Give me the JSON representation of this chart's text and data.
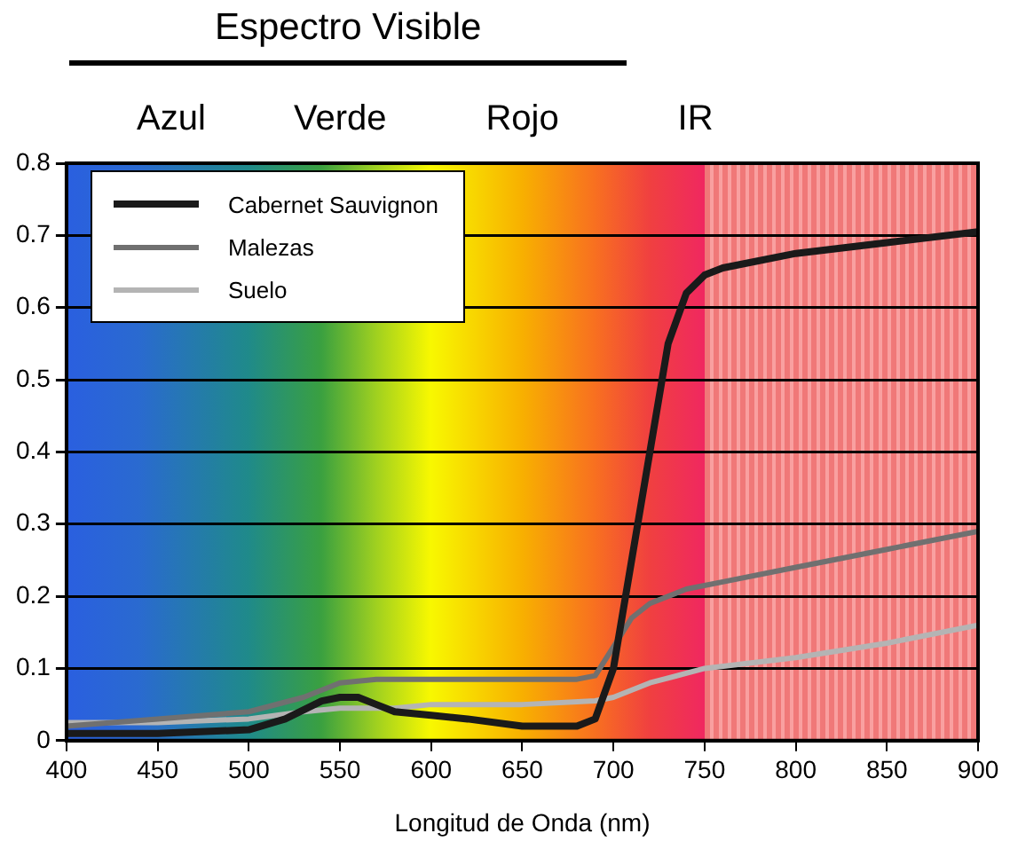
{
  "chart_data": {
    "type": "line",
    "title": "Espectro Visible",
    "annotations": [
      "Azul",
      "Verde",
      "Rojo",
      "IR"
    ],
    "xlabel": "Longitud de Onda (nm)",
    "xlim": [
      400,
      900
    ],
    "xticks": [
      400,
      450,
      500,
      550,
      600,
      650,
      700,
      750,
      800,
      850,
      900
    ],
    "ylim": [
      0,
      0.8
    ],
    "yticks": [
      0,
      0.1,
      0.2,
      0.3,
      0.4,
      0.5,
      0.6,
      0.7,
      0.8
    ],
    "grid": "y",
    "legend": "top left",
    "marker": "none",
    "series": [
      {
        "name": "Cabernet Sauvignon",
        "color": "#1a1a1a",
        "x": [
          400,
          450,
          500,
          520,
          540,
          550,
          560,
          570,
          580,
          600,
          620,
          650,
          680,
          690,
          700,
          710,
          720,
          730,
          740,
          750,
          760,
          800,
          850,
          900
        ],
        "values": [
          0.01,
          0.01,
          0.015,
          0.03,
          0.055,
          0.06,
          0.06,
          0.05,
          0.04,
          0.035,
          0.03,
          0.02,
          0.02,
          0.03,
          0.1,
          0.25,
          0.4,
          0.55,
          0.62,
          0.645,
          0.655,
          0.675,
          0.69,
          0.705
        ]
      },
      {
        "name": "Malezas",
        "color": "#707070",
        "x": [
          400,
          450,
          500,
          530,
          550,
          570,
          600,
          650,
          680,
          690,
          700,
          710,
          720,
          740,
          760,
          800,
          850,
          900
        ],
        "values": [
          0.02,
          0.03,
          0.04,
          0.06,
          0.08,
          0.085,
          0.085,
          0.085,
          0.085,
          0.09,
          0.13,
          0.17,
          0.19,
          0.21,
          0.22,
          0.24,
          0.265,
          0.29
        ]
      },
      {
        "name": "Suelo",
        "color": "#b4b4b4",
        "x": [
          400,
          450,
          500,
          530,
          550,
          580,
          600,
          650,
          690,
          700,
          720,
          750,
          800,
          850,
          900
        ],
        "values": [
          0.025,
          0.025,
          0.03,
          0.04,
          0.045,
          0.045,
          0.05,
          0.05,
          0.055,
          0.06,
          0.08,
          0.1,
          0.115,
          0.135,
          0.16
        ]
      }
    ]
  }
}
